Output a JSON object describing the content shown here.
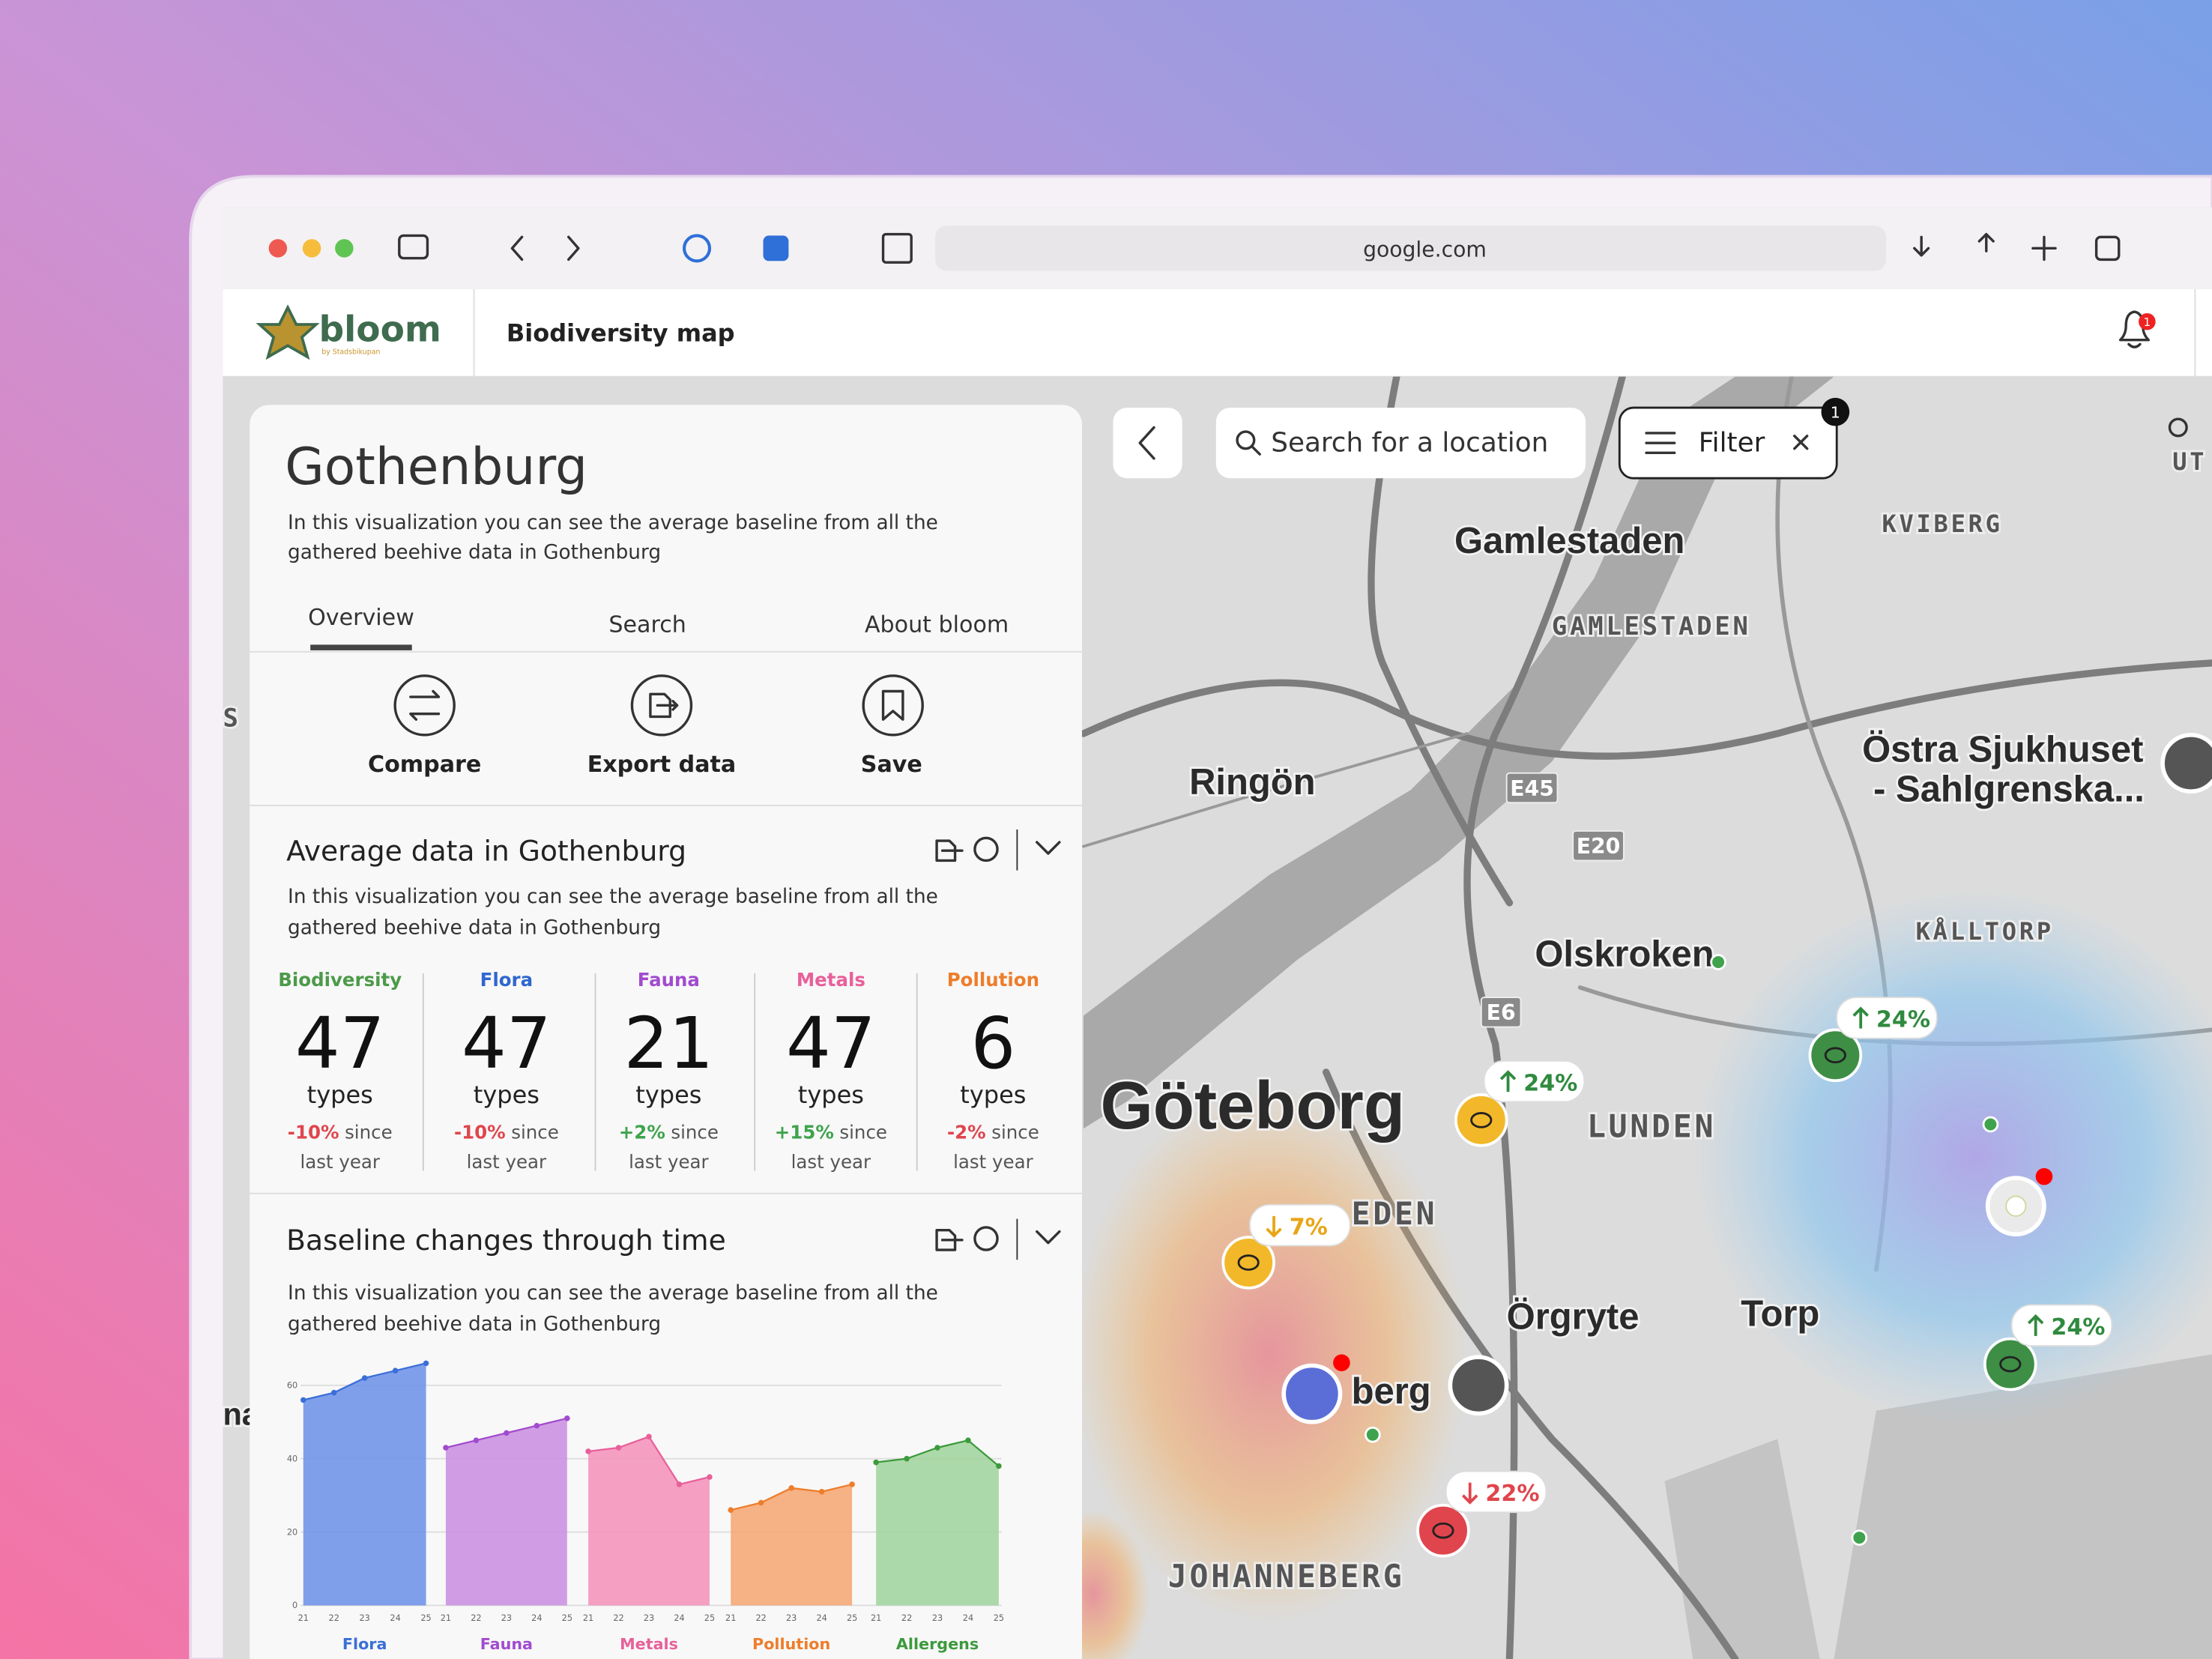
{
  "browser": {
    "url": "google.com"
  },
  "header": {
    "logo": "bloom",
    "logo_sub": "by Stadsbikupan",
    "page_title": "Biodiversity map",
    "notifications": "1"
  },
  "panel": {
    "title": "Gothenburg",
    "description_lines": [
      "In this visualization you can see the average baseline from all the",
      "gathered beehive data in Gothenburg"
    ],
    "tabs": [
      "Overview",
      "Search",
      "About bloom"
    ],
    "actions": [
      "Compare",
      "Export data",
      "Save"
    ],
    "average": {
      "title": "Average data in Gothenburg",
      "description_lines": [
        "In this visualization you can see the average baseline from all the",
        "gathered beehive data in Gothenburg"
      ],
      "stats": [
        {
          "label": "Biodiversity",
          "value": 47,
          "unit": "types",
          "change": "-10%",
          "since": "since",
          "period": "last year"
        },
        {
          "label": "Flora",
          "value": 47,
          "unit": "types",
          "change": "-10%",
          "since": "since",
          "period": "last year"
        },
        {
          "label": "Fauna",
          "value": 21,
          "unit": "types",
          "change": "+2%",
          "since": "since",
          "period": "last year"
        },
        {
          "label": "Metals",
          "value": 47,
          "unit": "types",
          "change": "+15%",
          "since": "since",
          "period": "last year"
        },
        {
          "label": "Pollution",
          "value": 6,
          "unit": "types",
          "change": "-2%",
          "since": "since",
          "period": "last year"
        }
      ]
    },
    "baseline": {
      "title": "Baseline changes through time",
      "description_lines": [
        "In this visualization you can see the average baseline from all the",
        "gathered beehive data in Gothenburg"
      ],
      "chart": {
        "type": "area",
        "categories": [
          "21",
          "22",
          "23",
          "24",
          "25"
        ],
        "ylim": [
          0,
          60
        ],
        "yticks": [
          0,
          20,
          40,
          60
        ],
        "series": [
          {
            "name": "Flora",
            "color": "#6b8fe8",
            "values": [
              56,
              58,
              62,
              64,
              66
            ]
          },
          {
            "name": "Fauna",
            "color": "#c98de0",
            "values": [
              43,
              45,
              47,
              49,
              51
            ]
          },
          {
            "name": "Metals",
            "color": "#f590ba",
            "values": [
              42,
              43,
              46,
              33,
              35
            ]
          },
          {
            "name": "Pollution",
            "color": "#f6a470",
            "values": [
              26,
              28,
              32,
              31,
              33
            ]
          },
          {
            "name": "Allergens",
            "color": "#9fd39b",
            "values": [
              39,
              40,
              43,
              45,
              38
            ]
          }
        ]
      }
    }
  },
  "map": {
    "search_placeholder": "Search for a location",
    "filter": "Filter",
    "filter_count": "1",
    "labels": [
      "Gamlestaden",
      "GAMLESTADEN",
      "KVIBERG",
      "Ringön",
      "Östra Sjukhuset",
      "- Sahlgrenska...",
      "KÅLLTORP",
      "Olskroken",
      "Göteborg",
      "LUNDEN",
      "EDEN",
      "Örgryte",
      "Torp",
      "berg",
      "JOHANNEBERG",
      "UT",
      "S",
      "na"
    ],
    "roads": [
      "E45",
      "E20",
      "E6"
    ],
    "badges": [
      "24%",
      "24%",
      "7%",
      "24%",
      "22%"
    ]
  }
}
